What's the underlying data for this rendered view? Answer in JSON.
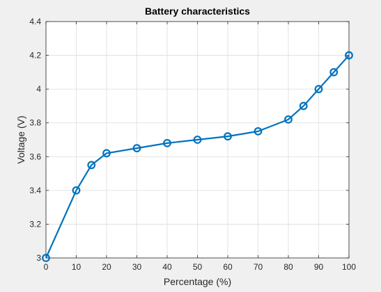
{
  "chart_data": {
    "type": "line",
    "title": "Battery characteristics",
    "xlabel": "Percentage (%)",
    "ylabel": "Voltage (V)",
    "xlim": [
      0,
      100
    ],
    "ylim": [
      3,
      4.4
    ],
    "xticks": [
      0,
      10,
      20,
      30,
      40,
      50,
      60,
      70,
      80,
      90,
      100
    ],
    "yticks": [
      3,
      3.2,
      3.4,
      3.6,
      3.8,
      4,
      4.2,
      4.4
    ],
    "xtick_labels": [
      "0",
      "10",
      "20",
      "30",
      "40",
      "50",
      "60",
      "70",
      "80",
      "90",
      "100"
    ],
    "ytick_labels": [
      "3",
      "3.2",
      "3.4",
      "3.6",
      "3.8",
      "4",
      "4.2",
      "4.4"
    ],
    "grid": true,
    "marker": "circle",
    "series": [
      {
        "x": [
          0,
          10,
          15,
          20,
          30,
          40,
          50,
          60,
          70,
          80,
          85,
          90,
          95,
          100
        ],
        "y": [
          3.0,
          3.4,
          3.55,
          3.62,
          3.65,
          3.68,
          3.7,
          3.72,
          3.75,
          3.82,
          3.9,
          4.0,
          4.1,
          4.2
        ],
        "color": "#0072bd"
      }
    ],
    "colors": {
      "background": "#f0f0f0",
      "axes_background": "#ffffff",
      "grid": "#dcdcdc",
      "axis": "#262626",
      "series": "#0072bd"
    }
  }
}
